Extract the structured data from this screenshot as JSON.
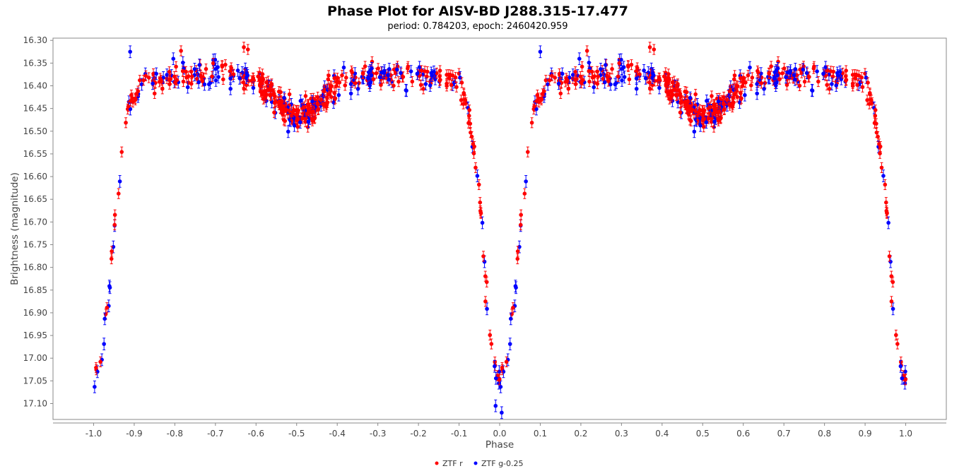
{
  "chart_data": {
    "type": "scatter",
    "title": "Phase Plot for AISV-BD J288.315-17.477",
    "subtitle": "period: 0.784203, epoch: 2460420.959",
    "xlabel": "Phase",
    "ylabel": "Brightness (magnitude)",
    "xlim": [
      -1.1,
      1.1
    ],
    "ylim": [
      16.295,
      17.135
    ],
    "y_inverted": true,
    "x_ticks": [
      -1.0,
      -0.9,
      -0.8,
      -0.7,
      -0.6,
      -0.5,
      -0.4,
      -0.3,
      -0.2,
      -0.1,
      0.0,
      0.1,
      0.2,
      0.3,
      0.4,
      0.5,
      0.6,
      0.7,
      0.8,
      0.9,
      1.0
    ],
    "x_tick_labels": [
      "-1.0",
      "-0.9",
      "-0.8",
      "-0.7",
      "-0.6",
      "-0.5",
      "-0.4",
      "-0.3",
      "-0.2",
      "-0.1",
      "0.0",
      "0.1",
      "0.2",
      "0.3",
      "0.4",
      "0.5",
      "0.6",
      "0.7",
      "0.8",
      "0.9",
      "1.0"
    ],
    "y_ticks": [
      16.3,
      16.35,
      16.4,
      16.45,
      16.5,
      16.55,
      16.6,
      16.65,
      16.7,
      16.75,
      16.8,
      16.85,
      16.9,
      16.95,
      17.0,
      17.05,
      17.1
    ],
    "y_tick_labels": [
      "16.30",
      "16.35",
      "16.40",
      "16.45",
      "16.50",
      "16.55",
      "16.60",
      "16.65",
      "16.70",
      "16.75",
      "16.80",
      "16.85",
      "16.90",
      "16.95",
      "17.00",
      "17.05",
      "17.10"
    ],
    "grid": false,
    "legend_position": "bottom-center",
    "light_curve_template": [
      [
        0.0,
        17.06
      ],
      [
        0.02,
        16.99
      ],
      [
        0.035,
        16.87
      ],
      [
        0.045,
        16.77
      ],
      [
        0.06,
        16.64
      ],
      [
        0.07,
        16.55
      ],
      [
        0.085,
        16.46
      ],
      [
        0.1,
        16.41
      ],
      [
        0.15,
        16.385
      ],
      [
        0.2,
        16.38
      ],
      [
        0.25,
        16.375
      ],
      [
        0.3,
        16.37
      ],
      [
        0.35,
        16.375
      ],
      [
        0.4,
        16.39
      ],
      [
        0.43,
        16.41
      ],
      [
        0.46,
        16.44
      ],
      [
        0.5,
        16.47
      ],
      [
        0.54,
        16.45
      ],
      [
        0.57,
        16.42
      ],
      [
        0.6,
        16.395
      ],
      [
        0.65,
        16.38
      ],
      [
        0.7,
        16.375
      ],
      [
        0.75,
        16.375
      ],
      [
        0.8,
        16.38
      ],
      [
        0.85,
        16.385
      ],
      [
        0.9,
        16.39
      ],
      [
        0.915,
        16.43
      ],
      [
        0.93,
        16.49
      ],
      [
        0.945,
        16.6
      ],
      [
        0.955,
        16.7
      ],
      [
        0.965,
        16.82
      ],
      [
        0.98,
        16.98
      ],
      [
        1.0,
        17.06
      ]
    ],
    "series": [
      {
        "name": "ZTF r",
        "color": "#ff0000",
        "point_count_per_cycle": 360,
        "scatter_sigma": 0.013,
        "errorbar": 0.011,
        "dense_phase_range": [
          0.4,
          0.6
        ]
      },
      {
        "name": "ZTF g-0.25",
        "color": "#0000ff",
        "point_count_per_cycle": 150,
        "scatter_sigma": 0.017,
        "errorbar": 0.013
      }
    ],
    "outliers": [
      {
        "series": "ZTF g-0.25",
        "x": 0.1,
        "y": 16.325
      },
      {
        "series": "ZTF r",
        "x": 0.37,
        "y": 16.315
      },
      {
        "series": "ZTF r",
        "x": 0.38,
        "y": 16.32
      },
      {
        "series": "ZTF r",
        "x": -0.63,
        "y": 16.315
      },
      {
        "series": "ZTF r",
        "x": -0.62,
        "y": 16.32
      },
      {
        "series": "ZTF g-0.25",
        "x": -0.91,
        "y": 16.325
      },
      {
        "series": "ZTF g-0.25",
        "x": 0.005,
        "y": 17.12
      },
      {
        "series": "ZTF g-0.25",
        "x": -0.01,
        "y": 17.105
      },
      {
        "series": "ZTF r",
        "x": -0.035,
        "y": 16.875
      },
      {
        "series": "ZTF r",
        "x": 0.965,
        "y": 16.875
      }
    ],
    "legend": [
      {
        "name": "ZTF r",
        "color": "#ff0000"
      },
      {
        "name": "ZTF g-0.25",
        "color": "#0000ff"
      }
    ]
  }
}
